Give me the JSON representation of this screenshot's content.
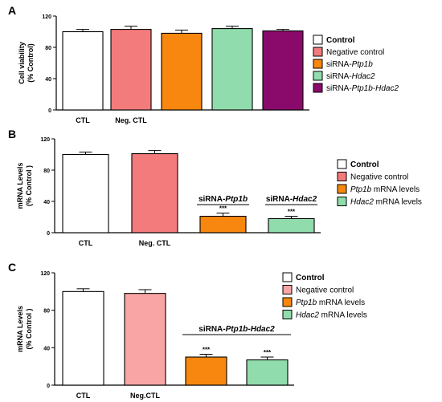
{
  "chart_data": [
    {
      "panel_letter": "A",
      "type": "bar",
      "ylabel": [
        "Cell viability",
        "(% Control)"
      ],
      "ylim": [
        0,
        120
      ],
      "yticks": [
        0,
        40,
        80,
        120
      ],
      "categories": [
        "Control",
        "Negative control",
        "siRNA-Ptp1b",
        "siRNA-Hdac2",
        "siRNA-Ptp1b-Hdac2"
      ],
      "values": [
        100,
        103,
        98,
        104,
        101
      ],
      "errors": [
        3,
        4,
        4,
        3,
        2
      ],
      "colors": [
        "#ffffff",
        "#f47b7b",
        "#f7870e",
        "#91dcac",
        "#8a0a6c"
      ],
      "x_tick_labels": [
        {
          "text": "CTL",
          "bar": 0
        },
        {
          "text": "Neg. CTL",
          "bar": 1
        }
      ],
      "legend": {
        "placement": "right",
        "entries": [
          {
            "parts": [
              {
                "t": "Control",
                "b": true
              }
            ]
          },
          {
            "parts": [
              {
                "t": "Negative control"
              }
            ]
          },
          {
            "parts": [
              {
                "t": "siRNA-"
              },
              {
                "t": "Ptp1b",
                "i": true
              }
            ]
          },
          {
            "parts": [
              {
                "t": "siRNA-"
              },
              {
                "t": "Hdac2",
                "i": true
              }
            ]
          },
          {
            "parts": [
              {
                "t": "siRNA-"
              },
              {
                "t": "Ptp1b-Hdac2",
                "i": true
              }
            ]
          }
        ]
      },
      "group_labels": [],
      "significance": []
    },
    {
      "panel_letter": "B",
      "type": "bar",
      "ylabel": [
        "mRNA Levels",
        "(% Control )"
      ],
      "ylim": [
        0,
        120
      ],
      "yticks": [
        0,
        40,
        80,
        120
      ],
      "categories": [
        "Control",
        "Negative control",
        "Ptp1b mRNA levels",
        "Hdac2 mRNA levels"
      ],
      "values": [
        100,
        101,
        21,
        18
      ],
      "errors": [
        3,
        4,
        4,
        3
      ],
      "colors": [
        "#ffffff",
        "#f47b7b",
        "#f7870e",
        "#91dcac"
      ],
      "x_tick_labels": [
        {
          "text": "CTL",
          "bar": 0
        },
        {
          "text": "Neg. CTL",
          "bar": 1
        }
      ],
      "legend": {
        "placement": "right",
        "entries": [
          {
            "parts": [
              {
                "t": "Control",
                "b": true
              }
            ]
          },
          {
            "parts": [
              {
                "t": "Negative control"
              }
            ]
          },
          {
            "parts": [
              {
                "t": "Ptp1b",
                "i": true
              },
              {
                "t": " mRNA levels"
              }
            ]
          },
          {
            "parts": [
              {
                "t": "Hdac2",
                "i": true
              },
              {
                "t": " mRNA levels"
              }
            ]
          }
        ]
      },
      "group_labels": [
        {
          "parts": [
            {
              "t": "siRNA-",
              "b": true
            },
            {
              "t": "Ptp1b",
              "b": true,
              "i": true
            }
          ],
          "bars": [
            2,
            2
          ]
        },
        {
          "parts": [
            {
              "t": "siRNA-",
              "b": true
            },
            {
              "t": "Hdac2",
              "b": true,
              "i": true
            }
          ],
          "bars": [
            3,
            3
          ]
        }
      ],
      "significance": [
        {
          "bar": 2,
          "label": "***"
        },
        {
          "bar": 3,
          "label": "***"
        }
      ]
    },
    {
      "panel_letter": "C",
      "type": "bar",
      "ylabel": [
        "mRNA Levels",
        "(% Control )"
      ],
      "ylim": [
        0,
        120
      ],
      "yticks": [
        0,
        40,
        80,
        120
      ],
      "categories": [
        "Control",
        "Negative control",
        "Ptp1b mRNA levels",
        "Hdac2 mRNA levels"
      ],
      "values": [
        100,
        98,
        30,
        27
      ],
      "errors": [
        3,
        4,
        3,
        3
      ],
      "colors": [
        "#ffffff",
        "#f9a5a5",
        "#f7870e",
        "#91dcac"
      ],
      "x_tick_labels": [
        {
          "text": "CTL",
          "bar": 0
        },
        {
          "text": "Neg.CTL",
          "bar": 1
        }
      ],
      "legend": {
        "placement": "right",
        "entries": [
          {
            "parts": [
              {
                "t": "Control",
                "b": true
              }
            ]
          },
          {
            "parts": [
              {
                "t": "Negative control"
              }
            ]
          },
          {
            "parts": [
              {
                "t": "Ptp1b",
                "i": true
              },
              {
                "t": " mRNA levels"
              }
            ]
          },
          {
            "parts": [
              {
                "t": "Hdac2",
                "i": true
              },
              {
                "t": " mRNA levels"
              }
            ]
          }
        ]
      },
      "group_labels": [
        {
          "parts": [
            {
              "t": "siRNA-",
              "b": true
            },
            {
              "t": "Ptp1b-Hdac2",
              "b": true,
              "i": true
            }
          ],
          "bars": [
            2,
            3
          ]
        }
      ],
      "significance": [
        {
          "bar": 2,
          "label": "***"
        },
        {
          "bar": 3,
          "label": "***"
        }
      ]
    }
  ]
}
